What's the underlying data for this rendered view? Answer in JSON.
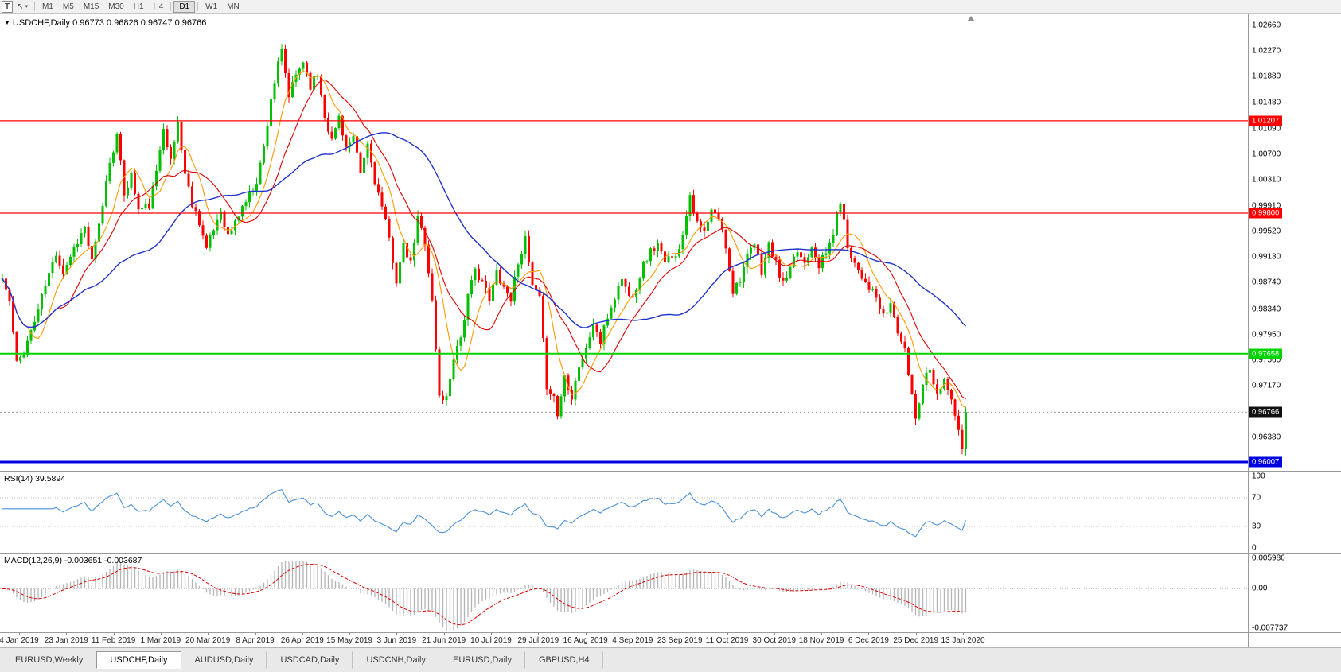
{
  "toolbar": {
    "t_button": "T",
    "cursor_tool": "↖",
    "dropdown_caret": "▾",
    "timeframes": [
      "M1",
      "M5",
      "M15",
      "M30",
      "H1",
      "H4",
      "D1",
      "W1",
      "MN"
    ],
    "active_timeframe": "D1"
  },
  "chart": {
    "collapse_icon": "▼",
    "symbol_label": "USDCHF,Daily",
    "ohlc": "0.96773 0.96826 0.96747 0.96766"
  },
  "price_axis": {
    "ticks": [
      "1.02660",
      "1.02270",
      "1.01880",
      "1.01480",
      "1.01090",
      "1.00700",
      "1.00310",
      "0.99910",
      "0.99520",
      "0.99130",
      "0.98740",
      "0.98340",
      "0.97950",
      "0.97560",
      "0.97170",
      "0.96380"
    ],
    "current_price": "0.96766"
  },
  "hlines": [
    {
      "price": 1.01207,
      "label": "1.01207",
      "color": "#ff0000",
      "width": 1.2
    },
    {
      "price": 0.998,
      "label": "0.99800",
      "color": "#ff0000",
      "width": 1.2
    },
    {
      "price": 0.97658,
      "label": "0.97658",
      "color": "#00d400",
      "width": 2
    },
    {
      "price": 0.96007,
      "label": "0.96007",
      "color": "#0000e0",
      "width": 3
    }
  ],
  "rsi": {
    "label": "RSI(14) 39.5894",
    "axis": [
      "100",
      "70",
      "30",
      "0"
    ],
    "levels": [
      70,
      30
    ]
  },
  "macd": {
    "label": "MACD(12,26,9) -0.003651 -0.003687",
    "axis_top": "0.005986",
    "axis_zero": "0.00",
    "axis_bottom": "-0.007737"
  },
  "date_axis": [
    "4 Jan 2019",
    "23 Jan 2019",
    "11 Feb 2019",
    "1 Mar 2019",
    "20 Mar 2019",
    "8 Apr 2019",
    "26 Apr 2019",
    "15 May 2019",
    "3 Jun 2019",
    "21 Jun 2019",
    "10 Jul 2019",
    "29 Jul 2019",
    "16 Aug 2019",
    "4 Sep 2019",
    "23 Sep 2019",
    "11 Oct 2019",
    "30 Oct 2019",
    "18 Nov 2019",
    "6 Dec 2019",
    "25 Dec 2019",
    "13 Jan 2020"
  ],
  "tabs": [
    {
      "label": "EURUSD,Weekly",
      "active": false
    },
    {
      "label": "USDCHF,Daily",
      "active": true
    },
    {
      "label": "AUDUSD,Daily",
      "active": false
    },
    {
      "label": "USDCAD,Daily",
      "active": false
    },
    {
      "label": "USDCNH,Daily",
      "active": false
    },
    {
      "label": "EURUSD,Daily",
      "active": false
    },
    {
      "label": "GBPUSD,H4",
      "active": false
    }
  ],
  "colors": {
    "up": "#00c000",
    "down": "#ff0000",
    "ma_fast": "#ff9900",
    "ma_mid": "#e00000",
    "ma_slow": "#2033cc",
    "rsi_line": "#4a90d9",
    "macd_hist": "#b4b4b4",
    "macd_signal": "#dd0000",
    "current_line": "#999999",
    "current_badge_bg": "#111111",
    "level_dotted": "#c0c0c0"
  },
  "chart_data": {
    "type": "candlestick",
    "symbol": "USDCHF",
    "timeframe": "Daily",
    "bars": 270,
    "current_price": 0.96766,
    "ohlc_last": {
      "open": 0.96773,
      "high": 0.96826,
      "low": 0.96747,
      "close": 0.96766
    },
    "y_range_main": [
      0.959,
      1.02842
    ],
    "price_ticks": [
      1.0266,
      1.0227,
      1.0188,
      1.0148,
      1.0109,
      1.007,
      1.0031,
      0.9991,
      0.9952,
      0.9913,
      0.9874,
      0.9834,
      0.9795,
      0.9756,
      0.9717,
      0.9638
    ],
    "horizontal_levels": [
      1.01207,
      0.998,
      0.97658,
      0.96007
    ],
    "ma_periods": {
      "fast": 8,
      "mid": 16,
      "slow": 42
    },
    "rsi_period": 14,
    "rsi_last": 39.5894,
    "rsi_range": [
      0,
      100
    ],
    "macd_params": {
      "fast": 12,
      "slow": 26,
      "signal": 9
    },
    "macd_last": -0.003651,
    "macd_signal_last": -0.003687,
    "macd_range": [
      -0.007737,
      0.005986
    ],
    "price_anchors": [
      [
        0,
        0.988
      ],
      [
        2,
        0.9845
      ],
      [
        4,
        0.975
      ],
      [
        6,
        0.977
      ],
      [
        9,
        0.9815
      ],
      [
        12,
        0.987
      ],
      [
        15,
        0.992
      ],
      [
        17,
        0.989
      ],
      [
        20,
        0.9928
      ],
      [
        23,
        0.9958
      ],
      [
        25,
        0.9905
      ],
      [
        27,
        0.996
      ],
      [
        30,
        1.006
      ],
      [
        32,
        1.0098
      ],
      [
        34,
        1.001
      ],
      [
        36,
        1.0038
      ],
      [
        38,
        0.9985
      ],
      [
        41,
        0.9992
      ],
      [
        43,
        1.004
      ],
      [
        45,
        1.0115
      ],
      [
        47,
        1.0058
      ],
      [
        49,
        1.0118
      ],
      [
        51,
        1.004
      ],
      [
        53,
        0.9995
      ],
      [
        55,
        0.9968
      ],
      [
        57,
        0.9925
      ],
      [
        59,
        0.9955
      ],
      [
        61,
        0.9985
      ],
      [
        63,
        0.9945
      ],
      [
        65,
        0.9965
      ],
      [
        67,
        0.999
      ],
      [
        69,
        1.0008
      ],
      [
        71,
        1.003
      ],
      [
        73,
        1.008
      ],
      [
        75,
        1.0155
      ],
      [
        77,
        1.0205
      ],
      [
        78,
        1.0225
      ],
      [
        80,
        1.0158
      ],
      [
        82,
        1.019
      ],
      [
        84,
        1.0212
      ],
      [
        86,
        1.0175
      ],
      [
        88,
        1.0192
      ],
      [
        90,
        1.013
      ],
      [
        92,
        1.009
      ],
      [
        94,
        1.0128
      ],
      [
        96,
        1.008
      ],
      [
        98,
        1.0092
      ],
      [
        100,
        1.004
      ],
      [
        102,
        1.0085
      ],
      [
        104,
        1.003
      ],
      [
        106,
        0.9988
      ],
      [
        108,
        0.994
      ],
      [
        110,
        0.9878
      ],
      [
        112,
        0.9928
      ],
      [
        114,
        0.9902
      ],
      [
        116,
        0.9972
      ],
      [
        118,
        0.9938
      ],
      [
        120,
        0.9845
      ],
      [
        122,
        0.97
      ],
      [
        124,
        0.9698
      ],
      [
        126,
        0.9762
      ],
      [
        128,
        0.9792
      ],
      [
        130,
        0.9852
      ],
      [
        132,
        0.9892
      ],
      [
        134,
        0.9878
      ],
      [
        136,
        0.9845
      ],
      [
        138,
        0.9892
      ],
      [
        140,
        0.9868
      ],
      [
        142,
        0.985
      ],
      [
        144,
        0.9908
      ],
      [
        146,
        0.9938
      ],
      [
        148,
        0.9868
      ],
      [
        150,
        0.9848
      ],
      [
        152,
        0.9718
      ],
      [
        154,
        0.97
      ],
      [
        155,
        0.9672
      ],
      [
        157,
        0.9732
      ],
      [
        159,
        0.9702
      ],
      [
        161,
        0.9748
      ],
      [
        163,
        0.9772
      ],
      [
        165,
        0.9812
      ],
      [
        167,
        0.9782
      ],
      [
        169,
        0.9822
      ],
      [
        171,
        0.9852
      ],
      [
        173,
        0.9882
      ],
      [
        175,
        0.9852
      ],
      [
        177,
        0.9868
      ],
      [
        179,
        0.9902
      ],
      [
        181,
        0.9922
      ],
      [
        183,
        0.9932
      ],
      [
        185,
        0.9902
      ],
      [
        187,
        0.9918
      ],
      [
        189,
        0.9922
      ],
      [
        192,
        1.001
      ],
      [
        194,
        0.9962
      ],
      [
        196,
        0.995
      ],
      [
        198,
        0.9982
      ],
      [
        200,
        0.9972
      ],
      [
        202,
        0.993
      ],
      [
        204,
        0.9862
      ],
      [
        206,
        0.9882
      ],
      [
        208,
        0.9912
      ],
      [
        210,
        0.9932
      ],
      [
        212,
        0.9892
      ],
      [
        214,
        0.9932
      ],
      [
        216,
        0.9902
      ],
      [
        218,
        0.9872
      ],
      [
        220,
        0.9892
      ],
      [
        222,
        0.9922
      ],
      [
        224,
        0.9905
      ],
      [
        226,
        0.9932
      ],
      [
        228,
        0.9902
      ],
      [
        230,
        0.9918
      ],
      [
        232,
        0.995
      ],
      [
        234,
        1.0
      ],
      [
        236,
        0.993
      ],
      [
        238,
        0.9905
      ],
      [
        240,
        0.9885
      ],
      [
        242,
        0.9868
      ],
      [
        244,
        0.985
      ],
      [
        246,
        0.982
      ],
      [
        248,
        0.9842
      ],
      [
        250,
        0.98
      ],
      [
        252,
        0.9768
      ],
      [
        254,
        0.9705
      ],
      [
        255,
        0.9668
      ],
      [
        257,
        0.9722
      ],
      [
        259,
        0.9748
      ],
      [
        261,
        0.9702
      ],
      [
        263,
        0.9732
      ],
      [
        265,
        0.9692
      ],
      [
        267,
        0.9648
      ],
      [
        268,
        0.9618
      ],
      [
        269,
        0.96766
      ]
    ]
  }
}
